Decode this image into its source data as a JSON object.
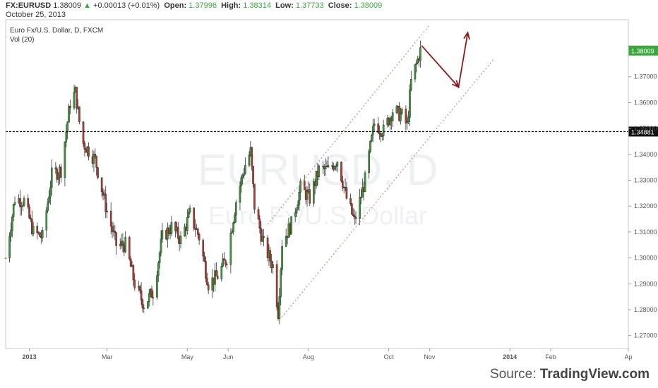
{
  "header": {
    "symbol": "FX:EURUSD",
    "price": "1.38009",
    "change_arrow": "▲",
    "change": "+0.00013 (+0.01%)",
    "open_label": "Open:",
    "open_value": "1.37996",
    "high_label": "High:",
    "high_value": "1.38314",
    "low_label": "Low:",
    "low_value": "1.37733",
    "close_label": "Close:",
    "close_value": "1.38009",
    "date": "October 25, 2013"
  },
  "chart_data": {
    "type": "candlestick",
    "title": "Euro Fx/U.S. Dollar, D, FXCM",
    "subtitle": "Vol (20)",
    "watermark_main": "EURUSD, D",
    "watermark_sub": "Euro Fx/U.S. Dollar",
    "y_axis": {
      "min": 1.265,
      "max": 1.392,
      "ticks": [
        "1.27000",
        "1.28000",
        "1.29000",
        "1.30000",
        "1.31000",
        "1.32000",
        "1.33000",
        "1.34000",
        "1.35000",
        "1.36000",
        "1.37000"
      ]
    },
    "x_axis": {
      "start": "2012-12-14",
      "end": "2014-04-01",
      "ticks": [
        {
          "label": "2013",
          "date": "2013-01-01",
          "bold": true
        },
        {
          "label": "Mar",
          "date": "2013-03-01",
          "bold": false
        },
        {
          "label": "May",
          "date": "2013-05-01",
          "bold": false
        },
        {
          "label": "Jun",
          "date": "2013-06-01",
          "bold": false
        },
        {
          "label": "Aug",
          "date": "2013-08-01",
          "bold": false
        },
        {
          "label": "Oct",
          "date": "2013-10-01",
          "bold": false
        },
        {
          "label": "Nov",
          "date": "2013-11-01",
          "bold": false
        },
        {
          "label": "2014",
          "date": "2014-01-01",
          "bold": true
        },
        {
          "label": "Feb",
          "date": "2014-02-01",
          "bold": false
        },
        {
          "label": "Ap",
          "date": "2014-04-01",
          "bold": false
        }
      ]
    },
    "price_series": [
      {
        "date": "2012-12-14",
        "close": 1.3
      },
      {
        "date": "2012-12-21",
        "close": 1.323
      },
      {
        "date": "2012-12-28",
        "close": 1.322
      },
      {
        "date": "2013-01-04",
        "close": 1.31
      },
      {
        "date": "2013-01-11",
        "close": 1.308
      },
      {
        "date": "2013-01-18",
        "close": 1.332
      },
      {
        "date": "2013-01-25",
        "close": 1.334
      },
      {
        "date": "2013-02-01",
        "close": 1.36
      },
      {
        "date": "2013-02-05",
        "close": 1.364
      },
      {
        "date": "2013-02-10",
        "close": 1.345
      },
      {
        "date": "2013-02-20",
        "close": 1.338
      },
      {
        "date": "2013-02-28",
        "close": 1.32
      },
      {
        "date": "2013-03-08",
        "close": 1.305
      },
      {
        "date": "2013-03-15",
        "close": 1.305
      },
      {
        "date": "2013-03-22",
        "close": 1.29
      },
      {
        "date": "2013-03-29",
        "close": 1.282
      },
      {
        "date": "2013-04-05",
        "close": 1.287
      },
      {
        "date": "2013-04-12",
        "close": 1.308
      },
      {
        "date": "2013-04-19",
        "close": 1.312
      },
      {
        "date": "2013-04-26",
        "close": 1.307
      },
      {
        "date": "2013-05-03",
        "close": 1.317
      },
      {
        "date": "2013-05-10",
        "close": 1.308
      },
      {
        "date": "2013-05-17",
        "close": 1.29
      },
      {
        "date": "2013-05-24",
        "close": 1.293
      },
      {
        "date": "2013-05-31",
        "close": 1.3
      },
      {
        "date": "2013-06-07",
        "close": 1.322
      },
      {
        "date": "2013-06-14",
        "close": 1.336
      },
      {
        "date": "2013-06-18",
        "close": 1.341
      },
      {
        "date": "2013-06-21",
        "close": 1.32
      },
      {
        "date": "2013-06-28",
        "close": 1.305
      },
      {
        "date": "2013-07-05",
        "close": 1.297
      },
      {
        "date": "2013-07-09",
        "close": 1.279
      },
      {
        "date": "2013-07-12",
        "close": 1.306
      },
      {
        "date": "2013-07-19",
        "close": 1.313
      },
      {
        "date": "2013-07-26",
        "close": 1.327
      },
      {
        "date": "2013-08-02",
        "close": 1.323
      },
      {
        "date": "2013-08-09",
        "close": 1.334
      },
      {
        "date": "2013-08-16",
        "close": 1.334
      },
      {
        "date": "2013-08-23",
        "close": 1.338
      },
      {
        "date": "2013-08-30",
        "close": 1.323
      },
      {
        "date": "2013-09-05",
        "close": 1.314
      },
      {
        "date": "2013-09-13",
        "close": 1.33
      },
      {
        "date": "2013-09-20",
        "close": 1.352
      },
      {
        "date": "2013-09-27",
        "close": 1.349
      },
      {
        "date": "2013-10-04",
        "close": 1.357
      },
      {
        "date": "2013-10-11",
        "close": 1.355
      },
      {
        "date": "2013-10-15",
        "close": 1.351
      },
      {
        "date": "2013-10-18",
        "close": 1.368
      },
      {
        "date": "2013-10-25",
        "close": 1.38
      }
    ],
    "last_price_label": "1.38009",
    "horizontal_level": {
      "value": 1.34881,
      "label": "1.34881"
    },
    "channel_upper": [
      {
        "date": "2013-07-01",
        "price": 1.313
      },
      {
        "date": "2013-11-01",
        "price": 1.39
      }
    ],
    "channel_lower": [
      {
        "date": "2013-07-10",
        "price": 1.276
      },
      {
        "date": "2013-12-20",
        "price": 1.377
      }
    ],
    "projection_path": [
      {
        "date": "2013-10-26",
        "price": 1.382
      },
      {
        "date": "2013-11-23",
        "price": 1.366
      },
      {
        "date": "2013-11-30",
        "price": 1.387
      }
    ],
    "colors": {
      "up": "#3a9a3a",
      "down": "#b33a2f",
      "channel": "#c98a8a",
      "arrow": "#8b1a1a",
      "price_label_bg": "#3aa83a",
      "level_label_bg": "#111111"
    }
  },
  "source": {
    "label": "Source: ",
    "brand": "TradingView.com"
  }
}
